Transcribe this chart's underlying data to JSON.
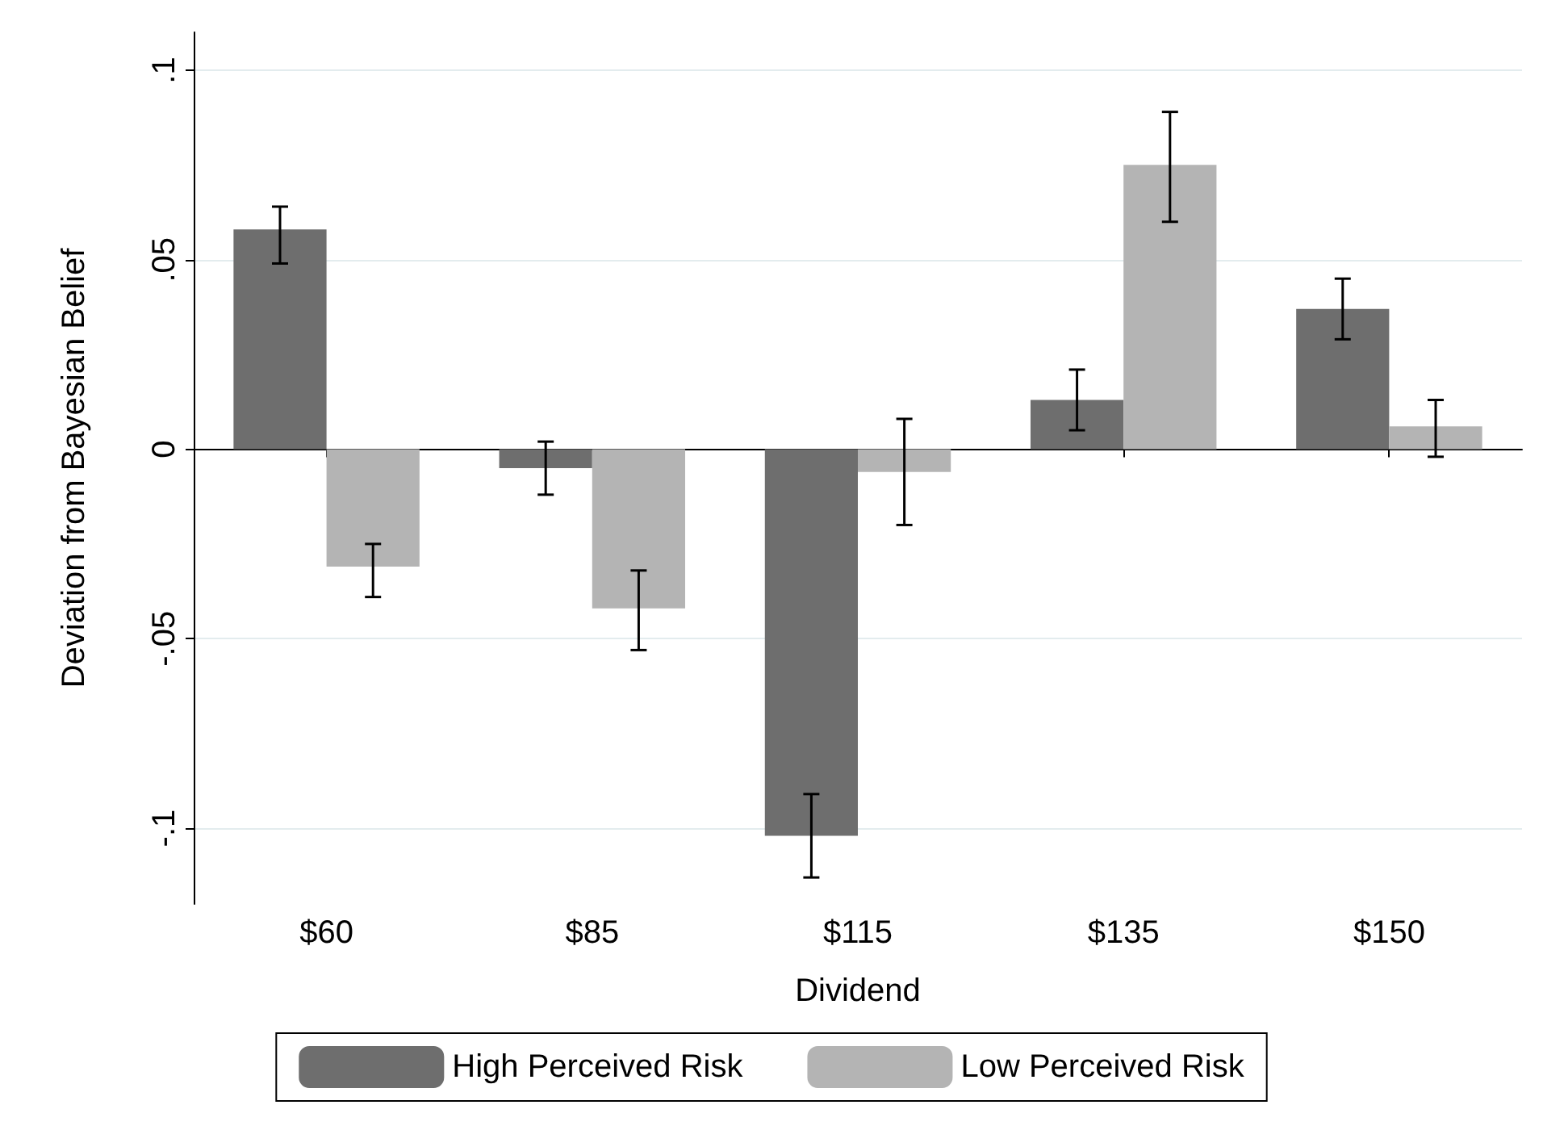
{
  "chart_data": {
    "type": "bar",
    "xlabel": "Dividend",
    "ylabel": "Deviation from Bayesian Belief",
    "categories": [
      "$60",
      "$85",
      "$115",
      "$135",
      "$150"
    ],
    "series": [
      {
        "name": "High Perceived Risk",
        "color": "#6e6e6e",
        "values": [
          0.058,
          -0.005,
          -0.102,
          0.013,
          0.037
        ],
        "errors": [
          [
            0.049,
            0.064
          ],
          [
            -0.012,
            0.002
          ],
          [
            -0.113,
            -0.091
          ],
          [
            0.005,
            0.021
          ],
          [
            0.029,
            0.045
          ]
        ]
      },
      {
        "name": "Low Perceived Risk",
        "color": "#b4b4b4",
        "values": [
          -0.031,
          -0.042,
          -0.006,
          0.075,
          0.006
        ],
        "errors": [
          [
            -0.039,
            -0.025
          ],
          [
            -0.053,
            -0.032
          ],
          [
            -0.02,
            0.008
          ],
          [
            0.06,
            0.089
          ],
          [
            -0.002,
            0.013
          ]
        ]
      }
    ],
    "ylim": [
      -0.12,
      0.11
    ],
    "yticks": [
      {
        "value": -0.1,
        "label": "-.1"
      },
      {
        "value": -0.05,
        "label": "-.05"
      },
      0,
      {
        "value": 0.05,
        "label": ".05"
      },
      {
        "value": 0.1,
        "label": ".1"
      }
    ],
    "grid": "y",
    "legend": "bottom"
  }
}
